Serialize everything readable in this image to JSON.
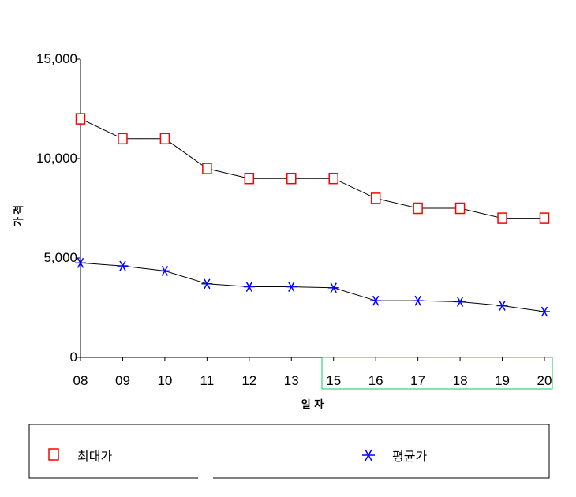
{
  "chart_data": {
    "type": "line",
    "title": "",
    "xlabel": "일 자",
    "ylabel": "가격",
    "categories": [
      "08",
      "09",
      "10",
      "11",
      "12",
      "13",
      "15",
      "16",
      "17",
      "18",
      "19",
      "20"
    ],
    "ylim": [
      0,
      15000
    ],
    "yticks": [
      0,
      5000,
      10000,
      15000
    ],
    "ytick_labels": [
      "0",
      "5,000",
      "10,000",
      "15,000"
    ],
    "series": [
      {
        "name": "최대가",
        "marker": "square",
        "color": "#ff0000",
        "values": [
          12000,
          11000,
          11000,
          9500,
          9000,
          9000,
          9000,
          8000,
          7500,
          7500,
          7000,
          7000
        ]
      },
      {
        "name": "평균가",
        "marker": "asterisk",
        "color": "#0000ff",
        "values": [
          4750,
          4600,
          4350,
          3700,
          3550,
          3550,
          3500,
          2850,
          2850,
          2800,
          2600,
          2300
        ]
      }
    ],
    "line_color": "#000000",
    "highlight_color": "#00cc66",
    "grid": false,
    "legend_position": "bottom"
  }
}
